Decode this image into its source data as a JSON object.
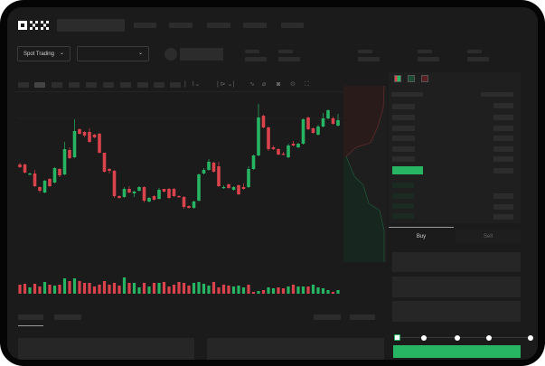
{
  "header": {
    "logo": "OKX"
  },
  "toolbar": {
    "market_select": "Spot Trading",
    "chevron": "⌄"
  },
  "order_form": {
    "buy_tab": "Buy",
    "sell_tab": "Sell",
    "slider_percent": 0
  },
  "colors": {
    "background": "#1b1b1b",
    "placeholder": "#2c2c2c",
    "up": "#27b463",
    "down": "#d9434b"
  },
  "chart_data": {
    "type": "candlestick",
    "fields": [
      "open",
      "close",
      "high",
      "low"
    ],
    "candles": [
      [
        118,
        115,
        120,
        114
      ],
      [
        118,
        109,
        119,
        108
      ],
      [
        107,
        108,
        109,
        106
      ],
      [
        108,
        94,
        112,
        93
      ],
      [
        93,
        89,
        94,
        87
      ],
      [
        87,
        100,
        101,
        86
      ],
      [
        102,
        94,
        103,
        93
      ],
      [
        98,
        114,
        115,
        97
      ],
      [
        113,
        106,
        114,
        104
      ],
      [
        107,
        135,
        143,
        106
      ],
      [
        134,
        125,
        137,
        124
      ],
      [
        126,
        155,
        168,
        125
      ],
      [
        157,
        152,
        158,
        151
      ],
      [
        154,
        150,
        155,
        148
      ],
      [
        154,
        143,
        158,
        142
      ],
      [
        151,
        148,
        152,
        147
      ],
      [
        152,
        131,
        153,
        130
      ],
      [
        131,
        110,
        131,
        109
      ],
      [
        113,
        111,
        114,
        108
      ],
      [
        111,
        83,
        112,
        81
      ],
      [
        83,
        81,
        84,
        80
      ],
      [
        82,
        91,
        93,
        81
      ],
      [
        91,
        87,
        94,
        86
      ],
      [
        86,
        88,
        89,
        82
      ],
      [
        89,
        93,
        94,
        88
      ],
      [
        93,
        78,
        94,
        76
      ],
      [
        77,
        81,
        82,
        76
      ],
      [
        83,
        79,
        84,
        78
      ],
      [
        80,
        90,
        92,
        79
      ],
      [
        91,
        88,
        91,
        87
      ],
      [
        91,
        81,
        92,
        80
      ],
      [
        91,
        83,
        92,
        82
      ],
      [
        83,
        82,
        84,
        81
      ],
      [
        82,
        71,
        83,
        69
      ],
      [
        72,
        70,
        73,
        69
      ],
      [
        70,
        77,
        78,
        69
      ],
      [
        78,
        107,
        108,
        77
      ],
      [
        108,
        112,
        114,
        107
      ],
      [
        112,
        121,
        124,
        111
      ],
      [
        120,
        110,
        121,
        109
      ],
      [
        116,
        94,
        121,
        93
      ],
      [
        92,
        93,
        95,
        91
      ],
      [
        96,
        92,
        97,
        91
      ],
      [
        90,
        93,
        94,
        89
      ],
      [
        95,
        85,
        96,
        84
      ],
      [
        93,
        91,
        97,
        90
      ],
      [
        93,
        113,
        116,
        92
      ],
      [
        113,
        128,
        129,
        112
      ],
      [
        128,
        170,
        185,
        127
      ],
      [
        172,
        159,
        173,
        158
      ],
      [
        159,
        135,
        160,
        133
      ],
      [
        137,
        135,
        139,
        134
      ],
      [
        135,
        129,
        136,
        128
      ],
      [
        130,
        129,
        132,
        128
      ],
      [
        126,
        139,
        141,
        125
      ],
      [
        141,
        139,
        144,
        138
      ],
      [
        137,
        141,
        142,
        136
      ],
      [
        141,
        168,
        169,
        140
      ],
      [
        170,
        157,
        171,
        156
      ],
      [
        158,
        153,
        159,
        152
      ],
      [
        151,
        160,
        162,
        150
      ],
      [
        160,
        169,
        175,
        159
      ],
      [
        169,
        178,
        179,
        168
      ],
      [
        169,
        163,
        171,
        162
      ],
      [
        161,
        167,
        174,
        160
      ]
    ],
    "volume": [
      [
        10,
        "d"
      ],
      [
        11,
        "d"
      ],
      [
        7,
        "u"
      ],
      [
        11,
        "d"
      ],
      [
        8,
        "d"
      ],
      [
        13,
        "u"
      ],
      [
        10,
        "d"
      ],
      [
        9,
        "u"
      ],
      [
        10,
        "d"
      ],
      [
        17,
        "u"
      ],
      [
        14,
        "d"
      ],
      [
        17,
        "u"
      ],
      [
        14,
        "d"
      ],
      [
        12,
        "d"
      ],
      [
        12,
        "d"
      ],
      [
        8,
        "d"
      ],
      [
        10,
        "d"
      ],
      [
        14,
        "d"
      ],
      [
        10,
        "d"
      ],
      [
        12,
        "d"
      ],
      [
        9,
        "d"
      ],
      [
        18,
        "u"
      ],
      [
        12,
        "d"
      ],
      [
        12,
        "u"
      ],
      [
        7,
        "u"
      ],
      [
        12,
        "d"
      ],
      [
        8,
        "u"
      ],
      [
        12,
        "d"
      ],
      [
        12,
        "u"
      ],
      [
        13,
        "d"
      ],
      [
        8,
        "d"
      ],
      [
        10,
        "d"
      ],
      [
        13,
        "d"
      ],
      [
        12,
        "d"
      ],
      [
        9,
        "d"
      ],
      [
        12,
        "u"
      ],
      [
        13,
        "u"
      ],
      [
        11,
        "u"
      ],
      [
        9,
        "u"
      ],
      [
        13,
        "d"
      ],
      [
        7,
        "d"
      ],
      [
        10,
        "d"
      ],
      [
        9,
        "d"
      ],
      [
        8,
        "u"
      ],
      [
        9,
        "u"
      ],
      [
        7,
        "u"
      ],
      [
        10,
        "d"
      ],
      [
        2,
        "d"
      ],
      [
        3,
        "u"
      ],
      [
        4,
        "d"
      ],
      [
        7,
        "u"
      ],
      [
        6,
        "u"
      ],
      [
        7,
        "d"
      ],
      [
        6,
        "d"
      ],
      [
        8,
        "u"
      ],
      [
        10,
        "d"
      ],
      [
        8,
        "u"
      ],
      [
        8,
        "u"
      ],
      [
        8,
        "d"
      ],
      [
        10,
        "u"
      ],
      [
        7,
        "u"
      ],
      [
        6,
        "u"
      ],
      [
        4,
        "u"
      ],
      [
        2,
        "d"
      ],
      [
        4,
        "u"
      ]
    ],
    "grid": false
  }
}
